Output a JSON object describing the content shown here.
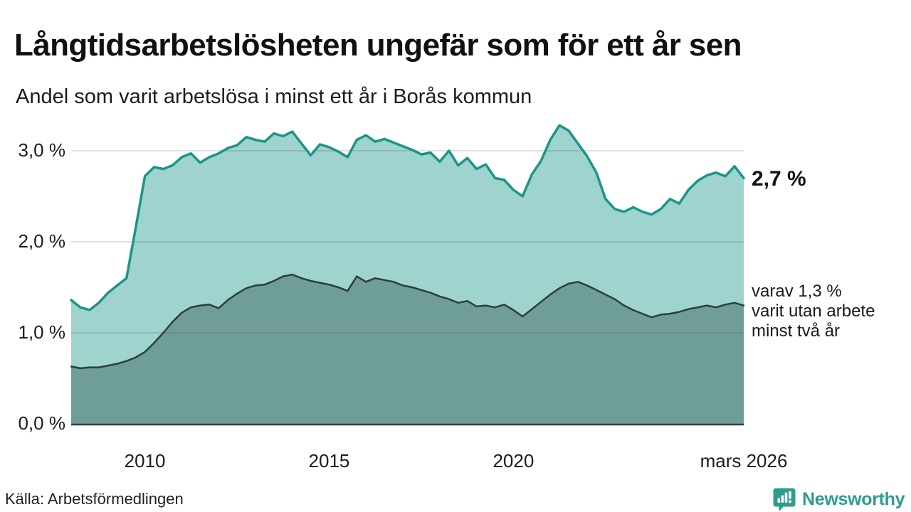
{
  "header": {
    "title": "Långtidsarbetslösheten ungefär som för ett år sen",
    "subtitle": "Andel som varit arbetslösa i minst ett år i Borås kommun"
  },
  "annotations": {
    "latest_value": "2,7 %",
    "secondary": [
      "varav 1,3 %",
      "varit utan arbete",
      "minst två år"
    ]
  },
  "source": {
    "text": "Källa: Arbetsförmedlingen"
  },
  "branding": {
    "name": "Newsworthy",
    "icon": "newsworthy-speech-bubble-chart-icon",
    "color": "#2d9d8e"
  },
  "colors": {
    "background": "#ffffff",
    "upper_line": "#1a9687",
    "upper_fill": "#9fd3ce",
    "lower_line": "#2b3f3c",
    "lower_fill": "#6f9d98",
    "gridline": "#d9d9d9",
    "axis_line": "#2e443f",
    "text": "#1a1a1a"
  },
  "chart_data": {
    "type": "area",
    "title": "Långtidsarbetslösheten ungefär som för ett år sen",
    "subtitle": "Andel som varit arbetslösa i minst ett år i Borås kommun",
    "xlabel": "",
    "ylabel": "",
    "grid": true,
    "legend": "direct-labels",
    "ylim": [
      0,
      3.4
    ],
    "x_range_years": [
      2008,
      2026.25
    ],
    "x": [
      2008,
      2008.25,
      2008.5,
      2008.75,
      2009,
      2009.25,
      2009.5,
      2009.75,
      2010,
      2010.25,
      2010.5,
      2010.75,
      2011,
      2011.25,
      2011.5,
      2011.75,
      2012,
      2012.25,
      2012.5,
      2012.75,
      2013,
      2013.25,
      2013.5,
      2013.75,
      2014,
      2014.25,
      2014.5,
      2014.75,
      2015,
      2015.25,
      2015.5,
      2015.75,
      2016,
      2016.25,
      2016.5,
      2016.75,
      2017,
      2017.25,
      2017.5,
      2017.75,
      2018,
      2018.25,
      2018.5,
      2018.75,
      2019,
      2019.25,
      2019.5,
      2019.75,
      2020,
      2020.25,
      2020.5,
      2020.75,
      2021,
      2021.25,
      2021.5,
      2021.75,
      2022,
      2022.25,
      2022.5,
      2022.75,
      2023,
      2023.25,
      2023.5,
      2023.75,
      2024,
      2024.25,
      2024.5,
      2024.75,
      2025,
      2025.25,
      2025.5,
      2025.75,
      2026,
      2026.25
    ],
    "series": [
      {
        "name": "Andel arbetslösa minst ett år",
        "color": "#1a9687",
        "fill": "#9fd3ce",
        "stroke_width": 3.5,
        "values": [
          1.36,
          1.28,
          1.25,
          1.33,
          1.44,
          1.52,
          1.6,
          2.15,
          2.72,
          2.82,
          2.8,
          2.84,
          2.93,
          2.97,
          2.87,
          2.93,
          2.97,
          3.03,
          3.06,
          3.15,
          3.12,
          3.1,
          3.19,
          3.16,
          3.21,
          3.08,
          2.95,
          3.07,
          3.04,
          2.99,
          2.93,
          3.12,
          3.17,
          3.1,
          3.13,
          3.09,
          3.05,
          3.01,
          2.96,
          2.98,
          2.88,
          3.0,
          2.84,
          2.92,
          2.8,
          2.85,
          2.7,
          2.68,
          2.57,
          2.5,
          2.74,
          2.89,
          3.12,
          3.28,
          3.22,
          3.08,
          2.94,
          2.76,
          2.47,
          2.36,
          2.33,
          2.38,
          2.33,
          2.3,
          2.36,
          2.47,
          2.42,
          2.57,
          2.67,
          2.73,
          2.76,
          2.72,
          2.83,
          2.7
        ]
      },
      {
        "name": "varav utan arbete minst två år",
        "color": "#2b3f3c",
        "fill": "#6f9d98",
        "stroke_width": 2.5,
        "values": [
          0.63,
          0.61,
          0.62,
          0.62,
          0.64,
          0.66,
          0.69,
          0.73,
          0.79,
          0.89,
          1.0,
          1.12,
          1.22,
          1.28,
          1.3,
          1.31,
          1.27,
          1.36,
          1.43,
          1.49,
          1.52,
          1.53,
          1.57,
          1.62,
          1.64,
          1.6,
          1.57,
          1.55,
          1.53,
          1.5,
          1.46,
          1.62,
          1.56,
          1.6,
          1.58,
          1.56,
          1.52,
          1.5,
          1.47,
          1.44,
          1.4,
          1.37,
          1.33,
          1.35,
          1.29,
          1.3,
          1.28,
          1.31,
          1.25,
          1.18,
          1.26,
          1.34,
          1.42,
          1.49,
          1.54,
          1.56,
          1.52,
          1.47,
          1.42,
          1.37,
          1.3,
          1.25,
          1.21,
          1.17,
          1.2,
          1.21,
          1.23,
          1.26,
          1.28,
          1.3,
          1.28,
          1.31,
          1.33,
          1.3
        ]
      }
    ],
    "yticks": [
      {
        "value": 0,
        "label": "0,0 %"
      },
      {
        "value": 1,
        "label": "1,0 %"
      },
      {
        "value": 2,
        "label": "2,0 %"
      },
      {
        "value": 3,
        "label": "3,0 %"
      }
    ],
    "xticks": [
      {
        "value": 2010,
        "label": "2010"
      },
      {
        "value": 2015,
        "label": "2015"
      },
      {
        "value": 2020,
        "label": "2020"
      },
      {
        "value": 2026.25,
        "label": "mars 2026"
      }
    ]
  }
}
